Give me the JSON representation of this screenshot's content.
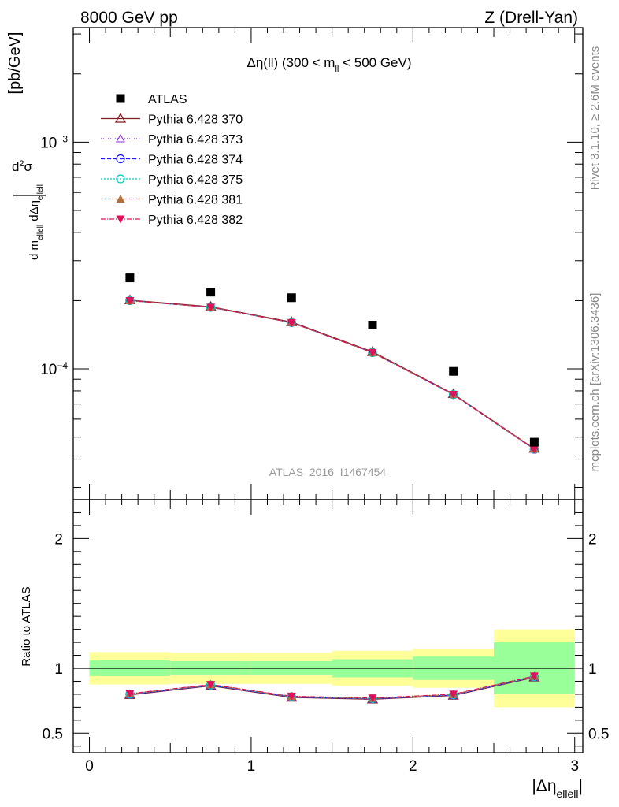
{
  "header": {
    "left": "8000 GeV pp",
    "right": "Z (Drell-Yan)"
  },
  "side": {
    "rivet": "Rivet 3.1.10, ≥ 2.6M events",
    "source": "mcplots.cern.ch [arXiv:1306.3436]"
  },
  "chart_data": [
    {
      "type": "scatter",
      "panel": "main",
      "title": "Δη(ll) (300 < m_ll < 500 GeV)",
      "ylabel": "d²σ / d m_ellell dΔη_ellell [pb/GeV]",
      "yscale": "log",
      "xlim": [
        -0.1,
        3.05
      ],
      "ylim": [
        2.65e-05,
        0.0032
      ],
      "y_tick_labels": [
        "10^-4",
        "10^-3"
      ],
      "legend_position": "top-left",
      "watermark": "ATLAS_2016_I1467454",
      "x": [
        0.25,
        0.75,
        1.25,
        1.75,
        2.25,
        2.75
      ],
      "series": [
        {
          "name": "ATLAS",
          "color": "#000000",
          "marker": "square",
          "values": [
            0.000252,
            0.000218,
            0.000206,
            0.000156,
            9.75e-05,
            4.75e-05
          ]
        },
        {
          "name": "Pythia 6.428 370",
          "color": "#7f1d1d",
          "marker": "triangle-open",
          "dash": "solid",
          "values": [
            0.000201,
            0.000188,
            0.000161,
            0.000119,
            7.75e-05,
            4.45e-05
          ]
        },
        {
          "name": "Pythia 6.428 373",
          "color": "#8a2be2",
          "marker": "triangle-open-small",
          "dash": "1,2",
          "values": [
            0.0002,
            0.000187,
            0.00016,
            0.000118,
            7.72e-05,
            4.43e-05
          ]
        },
        {
          "name": "Pythia 6.428 374",
          "color": "#1a1aff",
          "marker": "circle-open",
          "dash": "5,3",
          "values": [
            0.0002,
            0.000187,
            0.00016,
            0.000118,
            7.7e-05,
            4.42e-05
          ]
        },
        {
          "name": "Pythia 6.428 375",
          "color": "#00ccbb",
          "marker": "circle-open",
          "dash": "2,2",
          "values": [
            0.0002,
            0.000187,
            0.00016,
            0.000118,
            7.71e-05,
            4.43e-05
          ]
        },
        {
          "name": "Pythia 6.428 381",
          "color": "#b07040",
          "marker": "triangle-filled",
          "dash": "6,3",
          "values": [
            0.0002,
            0.000187,
            0.00016,
            0.000118,
            7.72e-05,
            4.43e-05
          ]
        },
        {
          "name": "Pythia 6.428 382",
          "color": "#e0105a",
          "marker": "triangle-down-filled",
          "dash": "6,2,1,2",
          "values": [
            0.0002,
            0.000187,
            0.00016,
            0.000118,
            7.71e-05,
            4.42e-05
          ]
        }
      ]
    },
    {
      "type": "line",
      "panel": "ratio",
      "ylabel": "Ratio to ATLAS",
      "xlabel": "|Δη_ellell|",
      "xlim": [
        -0.1,
        3.05
      ],
      "ylim": [
        0.35,
        2.3
      ],
      "x_ticks": [
        0,
        1,
        2,
        3
      ],
      "y_ticks": [
        0.5,
        1,
        2
      ],
      "bins": [
        [
          0,
          0.5
        ],
        [
          0.5,
          1
        ],
        [
          1,
          1.5
        ],
        [
          1.5,
          2
        ],
        [
          2,
          2.5
        ],
        [
          2.5,
          3
        ]
      ],
      "band_inner": [
        0.06,
        0.055,
        0.055,
        0.07,
        0.09,
        0.2
      ],
      "band_outer": [
        0.125,
        0.12,
        0.12,
        0.135,
        0.15,
        0.3
      ],
      "x": [
        0.25,
        0.75,
        1.25,
        1.75,
        2.25,
        2.75
      ],
      "values": [
        0.8,
        0.87,
        0.78,
        0.766,
        0.795,
        0.935
      ]
    }
  ]
}
